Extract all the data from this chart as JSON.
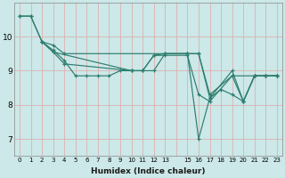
{
  "xlabel": "Humidex (Indice chaleur)",
  "ylabel": "",
  "background_color": "#cce8e8",
  "grid_color": "#ddb0b0",
  "line_color": "#2e7d6e",
  "series": [
    {
      "x": [
        0,
        1,
        2,
        3,
        4,
        15,
        16,
        17,
        19,
        20,
        21,
        22,
        23
      ],
      "y": [
        10.6,
        10.6,
        9.85,
        9.75,
        9.5,
        9.5,
        9.5,
        8.2,
        9.0,
        8.1,
        8.85,
        8.85,
        8.85
      ]
    },
    {
      "x": [
        0,
        1,
        2,
        3,
        4,
        5,
        6,
        7,
        8,
        9,
        10,
        11,
        12,
        13,
        15,
        16,
        17,
        19,
        20,
        21,
        22,
        23
      ],
      "y": [
        10.6,
        10.6,
        9.85,
        9.6,
        9.3,
        8.85,
        8.85,
        8.85,
        8.85,
        9.0,
        9.0,
        9.0,
        9.45,
        9.45,
        9.45,
        8.3,
        8.1,
        8.85,
        8.1,
        8.85,
        8.85,
        8.85
      ]
    },
    {
      "x": [
        2,
        3,
        4,
        10,
        11,
        12,
        13,
        15,
        16,
        17,
        18,
        19,
        20,
        21,
        22,
        23
      ],
      "y": [
        9.85,
        9.55,
        9.2,
        9.0,
        9.0,
        9.0,
        9.5,
        9.5,
        7.0,
        8.2,
        8.45,
        8.3,
        8.1,
        8.85,
        8.85,
        8.85
      ]
    },
    {
      "x": [
        2,
        3,
        10,
        11,
        12,
        13,
        15,
        16,
        17,
        19,
        21,
        22,
        23
      ],
      "y": [
        9.85,
        9.55,
        9.0,
        9.0,
        9.45,
        9.5,
        9.5,
        9.5,
        8.3,
        8.85,
        8.85,
        8.85,
        8.85
      ]
    }
  ],
  "ylim": [
    6.5,
    11.0
  ],
  "xlim": [
    -0.5,
    23.5
  ],
  "yticks": [
    7,
    8,
    9,
    10
  ],
  "xticks": [
    0,
    1,
    2,
    3,
    4,
    5,
    6,
    7,
    8,
    9,
    10,
    11,
    12,
    13,
    14,
    15,
    16,
    17,
    18,
    19,
    20,
    21,
    22,
    23
  ],
  "xtick_labels": [
    "0",
    "1",
    "2",
    "3",
    "4",
    "5",
    "6",
    "7",
    "8",
    "9",
    "10",
    "11",
    "12",
    "13",
    "",
    "15",
    "16",
    "17",
    "18",
    "19",
    "20",
    "21",
    "22",
    "23"
  ]
}
